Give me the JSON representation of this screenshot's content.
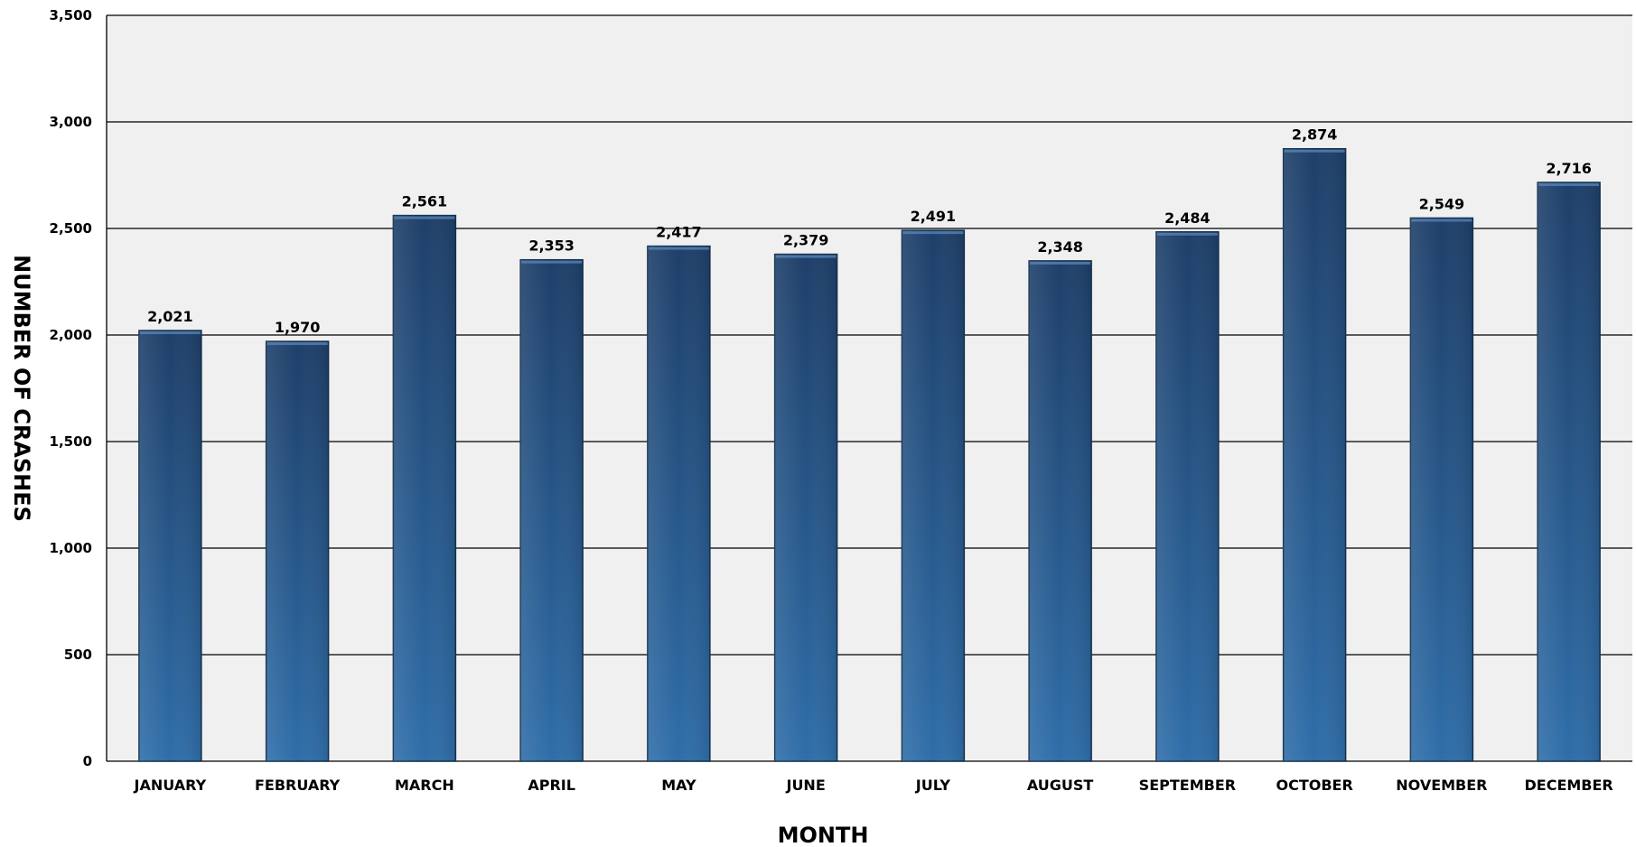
{
  "chart_data": {
    "type": "bar",
    "title": "",
    "xlabel": "MONTH",
    "ylabel": "NUMBER OF CRASHES",
    "categories": [
      "JANUARY",
      "FEBRUARY",
      "MARCH",
      "APRIL",
      "MAY",
      "JUNE",
      "JULY",
      "AUGUST",
      "SEPTEMBER",
      "OCTOBER",
      "NOVEMBER",
      "DECEMBER"
    ],
    "values": [
      2021,
      1970,
      2561,
      2353,
      2417,
      2379,
      2491,
      2348,
      2484,
      2874,
      2549,
      2716
    ],
    "data_labels": [
      "2,021",
      "1,970",
      "2,561",
      "2,353",
      "2,417",
      "2,379",
      "2,491",
      "2,348",
      "2,484",
      "2,874",
      "2,549",
      "2,716"
    ],
    "ylim": [
      0,
      3500
    ],
    "yticks": [
      0,
      500,
      1000,
      1500,
      2000,
      2500,
      3000,
      3500
    ],
    "ytick_labels": [
      "0",
      "500",
      "1,000",
      "1,500",
      "2,000",
      "2,500",
      "3,000",
      "3,500"
    ],
    "grid": true,
    "legend": "none",
    "colors": {
      "bar_top": "#1e3f69",
      "bar_bottom": "#2f6ea9",
      "plot_background": "#f0f0f0",
      "gridline": "#000000"
    }
  }
}
